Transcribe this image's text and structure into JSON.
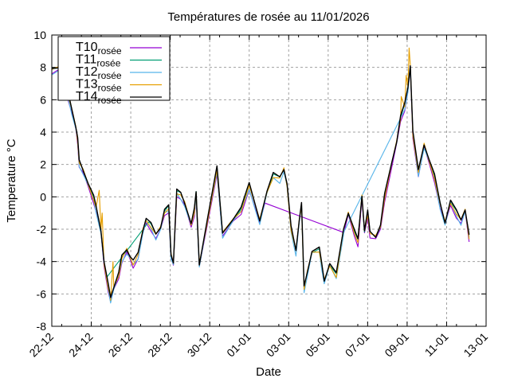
{
  "chart_data": {
    "type": "line",
    "title": "Températures de rosée au 11/01/2026",
    "xlabel": "Date",
    "ylabel": "Temperature °C",
    "ylim": [
      -8,
      10
    ],
    "yticks": [
      -8,
      -6,
      -4,
      -2,
      0,
      2,
      4,
      6,
      8,
      10
    ],
    "xlim_days_from_first_tick": [
      0,
      22
    ],
    "xticks": [
      {
        "day": 0,
        "label": "22-12"
      },
      {
        "day": 2,
        "label": "24-12"
      },
      {
        "day": 4,
        "label": "26-12"
      },
      {
        "day": 6,
        "label": "28-12"
      },
      {
        "day": 8,
        "label": "30-12"
      },
      {
        "day": 10,
        "label": "01-01"
      },
      {
        "day": 12,
        "label": "03-01"
      },
      {
        "day": 14,
        "label": "05-01"
      },
      {
        "day": 16,
        "label": "07-01"
      },
      {
        "day": 18,
        "label": "09-01"
      },
      {
        "day": 20,
        "label": "11-01"
      },
      {
        "day": 22,
        "label": "13-01"
      }
    ],
    "grid": true,
    "legend_position": "top-left",
    "legend_subscript": "rosée",
    "base_series_days_values": [
      [
        0,
        7.8
      ],
      [
        0.41,
        8.0
      ],
      [
        0.61,
        7.5
      ],
      [
        0.82,
        6.3
      ],
      [
        1.02,
        5.3
      ],
      [
        1.22,
        4.3
      ],
      [
        1.31,
        3.5
      ],
      [
        1.39,
        2.1
      ],
      [
        1.59,
        1.6
      ],
      [
        1.84,
        0.8
      ],
      [
        2.12,
        -0.1
      ],
      [
        2.24,
        -0.7
      ],
      [
        2.49,
        -2.1
      ],
      [
        2.65,
        -4.1
      ],
      [
        2.86,
        -5.6
      ],
      [
        2.98,
        -6.3
      ],
      [
        3.14,
        -5.6
      ],
      [
        3.39,
        -4.8
      ],
      [
        3.55,
        -3.8
      ],
      [
        3.8,
        -3.3
      ],
      [
        3.96,
        -3.7
      ],
      [
        4.12,
        -4.1
      ],
      [
        4.37,
        -3.6
      ],
      [
        4.61,
        -2.1
      ],
      [
        4.78,
        -1.4
      ],
      [
        5.02,
        -1.8
      ],
      [
        5.27,
        -2.4
      ],
      [
        5.51,
        -1.9
      ],
      [
        5.71,
        -0.9
      ],
      [
        5.92,
        -0.7
      ],
      [
        6.04,
        -3.6
      ],
      [
        6.16,
        -4.1
      ],
      [
        6.33,
        0.3
      ],
      [
        6.53,
        0.1
      ],
      [
        6.73,
        -0.4
      ],
      [
        7.06,
        -1.7
      ],
      [
        7.22,
        -0.9
      ],
      [
        7.31,
        0.2
      ],
      [
        7.47,
        -4.2
      ],
      [
        7.88,
        -1.5
      ],
      [
        8.37,
        1.7
      ],
      [
        8.65,
        -2.3
      ],
      [
        9.18,
        -1.4
      ],
      [
        9.59,
        -0.8
      ],
      [
        10.0,
        0.7
      ],
      [
        10.53,
        -1.5
      ],
      [
        10.9,
        0.3
      ],
      [
        11.22,
        1.3
      ],
      [
        11.55,
        1.1
      ],
      [
        11.76,
        1.7
      ],
      [
        11.92,
        0.7
      ],
      [
        12.12,
        -2.0
      ],
      [
        12.37,
        -3.4
      ],
      [
        12.53,
        -1.5
      ],
      [
        12.65,
        -0.5
      ],
      [
        12.78,
        -5.7
      ],
      [
        12.94,
        -4.7
      ],
      [
        13.18,
        -3.4
      ],
      [
        13.55,
        -3.3
      ],
      [
        13.67,
        -4.2
      ],
      [
        13.8,
        -5.2
      ],
      [
        14.08,
        -4.2
      ],
      [
        14.41,
        -4.9
      ],
      [
        14.78,
        -2.1
      ],
      [
        15.02,
        -1.0
      ],
      [
        15.31,
        -2.1
      ],
      [
        15.51,
        -2.8
      ],
      [
        15.71,
        0.0
      ],
      [
        15.84,
        -2.1
      ],
      [
        16.0,
        -1.0
      ],
      [
        16.12,
        -2.3
      ],
      [
        16.41,
        -2.5
      ],
      [
        16.65,
        -1.8
      ],
      [
        16.86,
        0.0
      ],
      [
        17.22,
        2.0
      ],
      [
        17.47,
        3.4
      ],
      [
        17.67,
        4.9
      ],
      [
        17.88,
        5.6
      ],
      [
        18.04,
        6.7
      ],
      [
        18.16,
        8.1
      ],
      [
        18.29,
        3.9
      ],
      [
        18.57,
        1.5
      ],
      [
        18.86,
        3.2
      ],
      [
        19.1,
        2.3
      ],
      [
        19.39,
        1.2
      ],
      [
        19.67,
        -0.5
      ],
      [
        19.92,
        -1.6
      ],
      [
        20.2,
        -0.3
      ],
      [
        20.49,
        -1.0
      ],
      [
        20.73,
        -1.5
      ],
      [
        20.94,
        -0.8
      ],
      [
        21.14,
        -2.5
      ]
    ],
    "series": [
      {
        "name": "T10",
        "color": "#9400d3",
        "offset": -0.2,
        "missing_days": [
          10.8,
          14.8
        ],
        "overrides": []
      },
      {
        "name": "T11",
        "color": "#009e73",
        "offset": 0.05,
        "missing_days": [
          2.78,
          4.9
        ],
        "overrides": []
      },
      {
        "name": "T12",
        "color": "#56b4e9",
        "offset": -0.15,
        "missing_days": [
          14.8,
          17.8
        ],
        "overrides": []
      },
      {
        "name": "T13",
        "color": "#e69f00",
        "offset": 0.0,
        "missing_days": [],
        "overrides": [
          [
            2.4,
            0.4
          ],
          [
            2.55,
            -1.0
          ],
          [
            2.98,
            -6.4
          ],
          [
            3.1,
            -4.0
          ],
          [
            17.7,
            6.2
          ],
          [
            17.95,
            7.5
          ],
          [
            18.1,
            9.2
          ]
        ]
      },
      {
        "name": "T14",
        "color": "#000000",
        "offset": 0.1,
        "missing_days": [],
        "overrides": []
      }
    ]
  }
}
